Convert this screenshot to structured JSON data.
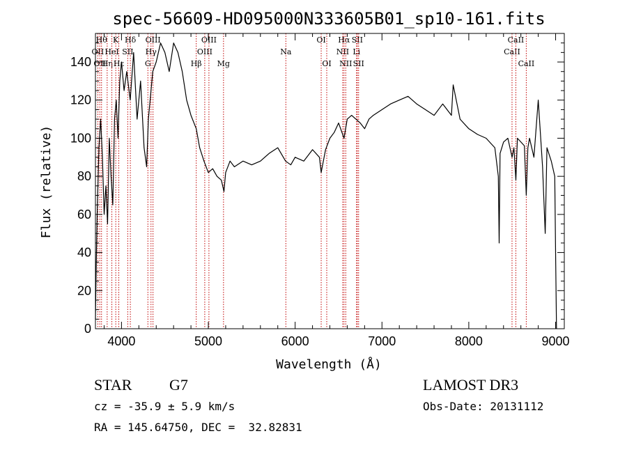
{
  "chart_data": {
    "type": "line",
    "title": "spec-56609-HD095000N333605B01_sp10-161.fits",
    "xlabel": "Wavelength (Å)",
    "ylabel": "Flux (relative)",
    "xlim": [
      3700,
      9100
    ],
    "ylim": [
      0,
      155
    ],
    "xticks": [
      4000,
      5000,
      6000,
      7000,
      8000,
      9000
    ],
    "yticks": [
      0,
      20,
      40,
      60,
      80,
      100,
      120,
      140
    ],
    "grid": false,
    "series": [
      {
        "x": [
          3700,
          3710,
          3720,
          3740,
          3760,
          3780,
          3800,
          3820,
          3840,
          3860,
          3880,
          3900,
          3920,
          3940,
          3960,
          3980,
          4000,
          4030,
          4060,
          4100,
          4140,
          4180,
          4220,
          4260,
          4290,
          4310,
          4330,
          4360,
          4400,
          4450,
          4500,
          4550,
          4600,
          4650,
          4700,
          4750,
          4800,
          4861,
          4900,
          4950,
          5000,
          5050,
          5100,
          5150,
          5180,
          5200,
          5250,
          5300,
          5400,
          5500,
          5600,
          5700,
          5800,
          5890,
          5950,
          6000,
          6100,
          6200,
          6280,
          6300,
          6350,
          6400,
          6450,
          6500,
          6563,
          6600,
          6650,
          6700,
          6750,
          6800,
          6850,
          6900,
          7000,
          7100,
          7200,
          7300,
          7400,
          7500,
          7600,
          7700,
          7800,
          7820,
          7900,
          8000,
          8100,
          8200,
          8300,
          8340,
          8350,
          8360,
          8400,
          8450,
          8498,
          8520,
          8542,
          8560,
          8600,
          8640,
          8662,
          8680,
          8700,
          8750,
          8800,
          8850,
          8880,
          8900,
          8950,
          8990,
          9000,
          9010
        ],
        "y": [
          5,
          35,
          60,
          95,
          110,
          90,
          60,
          75,
          55,
          100,
          80,
          65,
          110,
          120,
          100,
          130,
          140,
          125,
          135,
          120,
          145,
          110,
          130,
          95,
          85,
          110,
          120,
          135,
          140,
          150,
          145,
          135,
          150,
          145,
          135,
          120,
          112,
          105,
          95,
          88,
          82,
          84,
          80,
          78,
          72,
          82,
          88,
          85,
          88,
          86,
          88,
          92,
          95,
          88,
          86,
          90,
          88,
          94,
          90,
          82,
          94,
          100,
          103,
          108,
          100,
          110,
          112,
          110,
          108,
          105,
          110,
          112,
          115,
          118,
          120,
          122,
          118,
          115,
          112,
          118,
          112,
          128,
          110,
          105,
          102,
          100,
          95,
          80,
          45,
          92,
          98,
          100,
          90,
          95,
          78,
          100,
          98,
          96,
          70,
          95,
          100,
          90,
          120,
          85,
          50,
          95,
          88,
          80,
          40,
          0
        ]
      }
    ],
    "line_markers": [
      {
        "wl": 3727,
        "label": "OII",
        "row": 1
      },
      {
        "wl": 3750,
        "label": "OII",
        "row": 2
      },
      {
        "wl": 3770,
        "label": "Hθ",
        "row": 0
      },
      {
        "wl": 3835,
        "label": "Hη",
        "row": 2
      },
      {
        "wl": 3889,
        "label": "HeI",
        "row": 1
      },
      {
        "wl": 3934,
        "label": "K",
        "row": 0
      },
      {
        "wl": 3969,
        "label": "Hε",
        "row": 2
      },
      {
        "wl": 4072,
        "label": "SII",
        "row": 1
      },
      {
        "wl": 4102,
        "label": "Hδ",
        "row": 0
      },
      {
        "wl": 4304,
        "label": "G",
        "row": 2
      },
      {
        "wl": 4340,
        "label": "Hγ",
        "row": 1
      },
      {
        "wl": 4363,
        "label": "OIII",
        "row": 0
      },
      {
        "wl": 4861,
        "label": "Hβ",
        "row": 2
      },
      {
        "wl": 4959,
        "label": "OIII",
        "row": 1
      },
      {
        "wl": 5007,
        "label": "OIII",
        "row": 0
      },
      {
        "wl": 5175,
        "label": "Mg",
        "row": 2
      },
      {
        "wl": 5893,
        "label": "Na",
        "row": 1
      },
      {
        "wl": 6300,
        "label": "OI",
        "row": 0
      },
      {
        "wl": 6364,
        "label": "OI",
        "row": 2
      },
      {
        "wl": 6548,
        "label": "NII",
        "row": 1
      },
      {
        "wl": 6563,
        "label": "Hα",
        "row": 0
      },
      {
        "wl": 6583,
        "label": "NII",
        "row": 2
      },
      {
        "wl": 6707,
        "label": "Li",
        "row": 1
      },
      {
        "wl": 6716,
        "label": "SII",
        "row": 0
      },
      {
        "wl": 6731,
        "label": "SII",
        "row": 2
      },
      {
        "wl": 8498,
        "label": "CaII",
        "row": 1
      },
      {
        "wl": 8542,
        "label": "CaII",
        "row": 0
      },
      {
        "wl": 8662,
        "label": "CaII",
        "row": 2
      }
    ]
  },
  "info": {
    "object_type": "STAR",
    "subclass": "G7",
    "survey": "LAMOST DR3",
    "velocity": "cz = -35.9 ± 5.9 km/s",
    "obs_date": "Obs-Date: 20131112",
    "coords": "RA = 145.64750, DEC =  32.82831"
  },
  "colors": {
    "spectrum": "#000000",
    "marker": "#c00000",
    "axes": "#000000"
  }
}
